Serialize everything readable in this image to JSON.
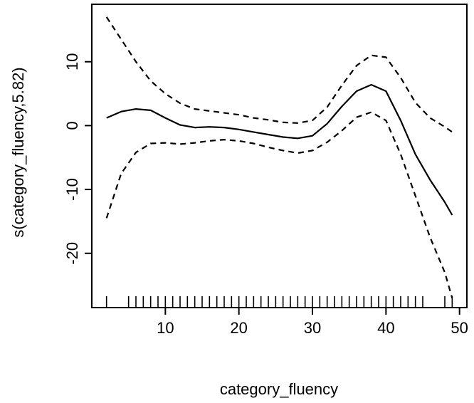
{
  "chart_data": {
    "type": "line",
    "xlabel": "category_fluency",
    "ylabel": "s(category_fluency,5.82)",
    "xlim": [
      0,
      51
    ],
    "ylim": [
      -28.5,
      19
    ],
    "xticks": [
      10,
      20,
      30,
      40,
      50
    ],
    "yticks": [
      -20,
      -10,
      0,
      10
    ],
    "grid": false,
    "series": [
      {
        "style": "solid",
        "x": [
          2,
          4,
          6,
          8,
          10,
          12,
          14,
          16,
          18,
          20,
          22,
          24,
          26,
          28,
          30,
          32,
          34,
          36,
          38,
          40,
          42,
          44,
          46,
          48,
          49
        ],
        "y": [
          1.2,
          2.2,
          2.6,
          2.4,
          1.2,
          0.1,
          -0.3,
          -0.2,
          -0.3,
          -0.6,
          -1.0,
          -1.4,
          -1.8,
          -2.0,
          -1.6,
          0.3,
          3.0,
          5.4,
          6.4,
          5.4,
          0.8,
          -4.5,
          -8.5,
          -12.0,
          -14.0
        ]
      },
      {
        "style": "dashed",
        "x": [
          2,
          4,
          6,
          8,
          10,
          12,
          14,
          16,
          18,
          20,
          22,
          24,
          26,
          28,
          30,
          32,
          34,
          36,
          38,
          40,
          42,
          44,
          46,
          48,
          49
        ],
        "y": [
          17.0,
          13.5,
          10.0,
          7.0,
          5.0,
          3.5,
          2.6,
          2.3,
          2.0,
          1.7,
          1.2,
          0.9,
          0.5,
          0.4,
          0.8,
          2.9,
          6.3,
          9.4,
          11.0,
          10.7,
          7.5,
          3.6,
          1.2,
          -0.2,
          -1.0
        ]
      },
      {
        "style": "dashed",
        "x": [
          2,
          4,
          6,
          8,
          10,
          12,
          14,
          16,
          18,
          20,
          22,
          24,
          26,
          28,
          30,
          32,
          34,
          36,
          38,
          40,
          42,
          44,
          46,
          48,
          49
        ],
        "y": [
          -14.5,
          -7.5,
          -4.2,
          -2.8,
          -2.7,
          -2.9,
          -2.7,
          -2.4,
          -2.2,
          -2.4,
          -2.8,
          -3.4,
          -3.9,
          -4.3,
          -3.9,
          -2.6,
          -0.8,
          1.3,
          2.1,
          0.8,
          -4.5,
          -11.0,
          -17.5,
          -23.0,
          -27.0
        ]
      }
    ],
    "rug": [
      2,
      5,
      6,
      7,
      8,
      9,
      10,
      11,
      12,
      13,
      14,
      15,
      16,
      17,
      18,
      19,
      20,
      21,
      22,
      23,
      24,
      25,
      26,
      27,
      28,
      29,
      30,
      31,
      32,
      33,
      34,
      35,
      36,
      37,
      38,
      39,
      40,
      41,
      42,
      43,
      44,
      45,
      48,
      49
    ]
  }
}
